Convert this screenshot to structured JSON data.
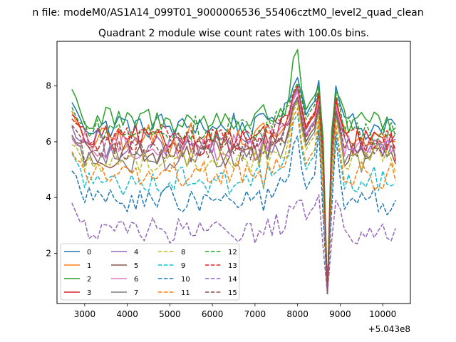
{
  "figure": {
    "suptitle": "n file: modeM0/AS1A14_099T01_9000006536_55406cztM0_level2_quad_clean"
  },
  "chart_data": {
    "type": "line",
    "title": "Quadrant 2 module wise count rates with 100.0s bins.",
    "xlabel": "",
    "ylabel": "",
    "x_offset_label": "+5.043e8",
    "xlim": [
      2350,
      10650
    ],
    "ylim": [
      0.2,
      9.6
    ],
    "xticks": [
      3000,
      4000,
      5000,
      6000,
      7000,
      8000,
      9000,
      10000
    ],
    "yticks": [
      2,
      4,
      6,
      8
    ],
    "grid": false,
    "legend": {
      "placement": "lower-left",
      "columns": 4
    },
    "x_start": 2700,
    "x_step": 100,
    "n_points": 77,
    "dip": {
      "x": 8700,
      "value": 0.55
    },
    "spike_x": 8000,
    "series": [
      {
        "name": "0",
        "color": "#1f77b4",
        "style": "solid",
        "level": 6.55,
        "spike": 8.3,
        "peak2": 8.2,
        "start": 7.5,
        "end": 6.6
      },
      {
        "name": "1",
        "color": "#ff7f0e",
        "style": "solid",
        "level": 6.1,
        "spike": 7.9,
        "peak2": 7.6,
        "start": 7.0,
        "end": 6.0
      },
      {
        "name": "2",
        "color": "#2ca02c",
        "style": "solid",
        "level": 6.75,
        "spike": 9.3,
        "peak2": 8.0,
        "start": 7.9,
        "end": 6.5
      },
      {
        "name": "3",
        "color": "#d62728",
        "style": "solid",
        "level": 6.05,
        "spike": 8.0,
        "peak2": 7.8,
        "start": 7.1,
        "end": 5.3
      },
      {
        "name": "4",
        "color": "#9467bd",
        "style": "solid",
        "level": 5.85,
        "spike": 7.9,
        "peak2": 7.5,
        "start": 6.5,
        "end": 6.1
      },
      {
        "name": "5",
        "color": "#8c564b",
        "style": "solid",
        "level": 5.6,
        "spike": 7.6,
        "peak2": 7.4,
        "start": 6.3,
        "end": 5.2
      },
      {
        "name": "6",
        "color": "#e377c2",
        "style": "solid",
        "level": 5.8,
        "spike": 7.8,
        "peak2": 7.5,
        "start": 6.0,
        "end": 5.8
      },
      {
        "name": "7",
        "color": "#7f7f7f",
        "style": "solid",
        "level": 5.45,
        "spike": 7.5,
        "peak2": 7.2,
        "start": 6.2,
        "end": 5.5
      },
      {
        "name": "8",
        "color": "#bcbd22",
        "style": "dashed",
        "level": 5.3,
        "spike": 7.4,
        "peak2": 7.0,
        "start": 6.0,
        "end": 4.9
      },
      {
        "name": "9",
        "color": "#17becf",
        "style": "dashed",
        "level": 4.6,
        "spike": 7.0,
        "peak2": 6.6,
        "start": 5.5,
        "end": 4.5
      },
      {
        "name": "10",
        "color": "#1f77b4",
        "style": "dashed",
        "level": 3.9,
        "spike": 6.2,
        "peak2": 6.4,
        "start": 5.0,
        "end": 3.9
      },
      {
        "name": "11",
        "color": "#ff7f0e",
        "style": "dashed",
        "level": 4.8,
        "spike": 7.2,
        "peak2": 6.8,
        "start": 5.8,
        "end": 4.6
      },
      {
        "name": "12",
        "color": "#2ca02c",
        "style": "dashed",
        "level": 6.4,
        "spike": 8.1,
        "peak2": 7.9,
        "start": 7.2,
        "end": 6.2
      },
      {
        "name": "13",
        "color": "#d62728",
        "style": "dashed",
        "level": 6.15,
        "spike": 8.0,
        "peak2": 7.7,
        "start": 6.9,
        "end": 5.7
      },
      {
        "name": "14",
        "color": "#9467bd",
        "style": "dashed",
        "level": 2.8,
        "spike": 3.9,
        "peak2": 4.1,
        "start": 3.7,
        "end": 2.9
      },
      {
        "name": "15",
        "color": "#8c564b",
        "style": "dashed",
        "level": 5.75,
        "spike": 7.6,
        "peak2": 7.3,
        "start": 6.6,
        "end": 6.3
      }
    ]
  }
}
